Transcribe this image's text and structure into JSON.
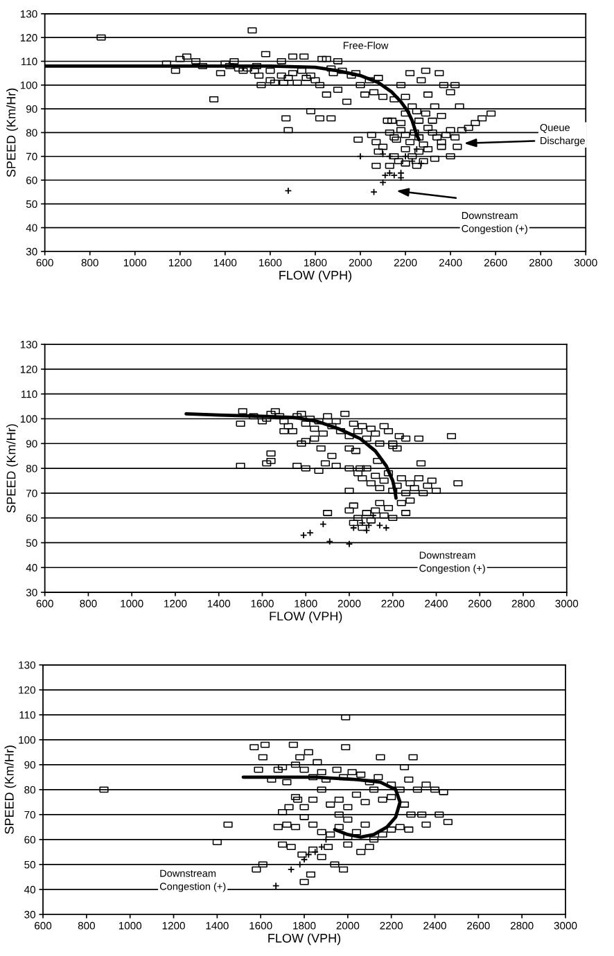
{
  "chart_data": [
    {
      "type": "scatter",
      "xlabel": "FLOW (VPH)",
      "ylabel": "SPEED (Km/Hr)",
      "xlim": [
        600,
        3000
      ],
      "ylim": [
        30,
        130
      ],
      "xticks": [
        600,
        800,
        1000,
        1200,
        1400,
        1600,
        1800,
        2000,
        2200,
        2400,
        2600,
        2800,
        3000
      ],
      "yticks": [
        30,
        40,
        50,
        60,
        70,
        80,
        90,
        100,
        110,
        120,
        130
      ],
      "grid": "y",
      "annotations": [
        "Free-Flow",
        "Queue\nDischarge",
        "Downstream\nCongestion (+)"
      ],
      "series": [
        {
          "marker": "square",
          "color": "#000000",
          "x": [
            850,
            1520,
            1180,
            1350,
            1140,
            1200,
            1230,
            1270,
            1300,
            1380,
            1400,
            1420,
            1440,
            1460,
            1480,
            1500,
            1530,
            1550,
            1560,
            1600,
            1620,
            1650,
            1680,
            1700,
            1720,
            1740,
            1760,
            1780,
            1800,
            1820,
            1830,
            1850,
            1870,
            1880,
            1900,
            1920,
            1940,
            1960,
            1980,
            2000,
            2020,
            2040,
            2060,
            2080,
            2100,
            1700,
            1580,
            1650,
            1750,
            1850,
            1900,
            1780,
            1820,
            1870,
            1670,
            1680,
            1660,
            1540,
            1600,
            2150,
            2180,
            2200,
            2230,
            2250,
            2270,
            2300,
            2330,
            2350,
            2370,
            2400,
            2420,
            2440,
            2290,
            2220,
            2200,
            2260,
            2290,
            2320,
            2360,
            2510,
            2540,
            2580,
            2480,
            2450,
            2050,
            2070,
            2080,
            2100,
            2130,
            2150,
            2160,
            2180,
            2200,
            2220,
            2240,
            2260,
            2280,
            2300,
            2320,
            2340,
            2360,
            2380,
            2400,
            2420,
            2360,
            2300,
            2260,
            2230,
            2200,
            2170,
            2150,
            2280,
            2330,
            2400,
            2130,
            2250,
            2200,
            1990,
            2070,
            2120,
            2140,
            2180,
            2430
          ],
          "values": [
            120,
            123,
            106,
            94,
            109,
            111,
            112,
            110,
            108,
            105,
            109,
            108,
            110,
            107,
            106,
            107,
            106,
            104,
            100,
            102,
            101,
            104,
            103,
            105,
            101,
            106,
            103,
            104,
            102,
            100,
            111,
            96,
            107,
            105,
            98,
            106,
            93,
            104,
            105,
            100,
            96,
            102,
            97,
            103,
            95,
            112,
            113,
            110,
            112,
            111,
            110,
            89,
            86,
            86,
            86,
            81,
            101,
            108,
            106,
            94,
            100,
            95,
            91,
            89,
            102,
            96,
            91,
            105,
            100,
            97,
            100,
            91,
            106,
            105,
            88,
            85,
            88,
            85,
            87,
            84,
            86,
            88,
            82,
            81,
            79,
            76,
            72,
            74,
            80,
            78,
            77,
            81,
            79,
            76,
            80,
            78,
            75,
            82,
            80,
            78,
            76,
            79,
            81,
            78,
            74,
            73,
            72,
            70,
            67,
            68,
            70,
            68,
            69,
            70,
            66,
            66,
            73,
            77,
            66,
            85,
            85,
            84,
            74
          ]
        },
        {
          "marker": "cross",
          "color": "#000000",
          "x": [
            1680,
            2060,
            2100,
            2110,
            2130,
            2150,
            2180,
            2130,
            2200,
            2250,
            2000,
            2100,
            2230,
            2270,
            2180
          ],
          "values": [
            55.5,
            55,
            59,
            62,
            63,
            62,
            63,
            70,
            70,
            73,
            70,
            71,
            68,
            67,
            61
          ]
        },
        {
          "type": "line",
          "marker": "none",
          "color": "#000000",
          "x": [
            600,
            1000,
            1400,
            1600,
            1800,
            1900,
            2000,
            2080,
            2140,
            2180,
            2210,
            2230,
            2240,
            2250,
            2260
          ],
          "values": [
            108,
            108,
            108,
            108,
            107.5,
            106,
            104,
            101,
            97,
            93,
            89,
            85,
            82,
            79,
            77
          ]
        }
      ]
    },
    {
      "type": "scatter",
      "xlabel": "FLOW (VPH)",
      "ylabel": "SPEED (Km/Hr)",
      "xlim": [
        600,
        3000
      ],
      "ylim": [
        30,
        130
      ],
      "xticks": [
        600,
        800,
        1000,
        1200,
        1400,
        1600,
        1800,
        2000,
        2200,
        2400,
        2600,
        2800,
        3000
      ],
      "yticks": [
        30,
        40,
        50,
        60,
        70,
        80,
        90,
        100,
        110,
        120,
        130
      ],
      "grid": "y",
      "annotations": [
        "Downstream\nCongestion (+)"
      ],
      "series": [
        {
          "marker": "square",
          "color": "#000000",
          "x": [
            1500,
            1510,
            1560,
            1600,
            1620,
            1640,
            1660,
            1680,
            1700,
            1720,
            1740,
            1760,
            1780,
            1800,
            1820,
            1840,
            1860,
            1880,
            1900,
            1920,
            1940,
            1960,
            1980,
            2000,
            2020,
            2040,
            2060,
            2080,
            2100,
            2120,
            2140,
            2160,
            2180,
            2200,
            2230,
            2260,
            2320,
            2470,
            1700,
            1840,
            1800,
            1780,
            1870,
            1920,
            1890,
            1640,
            1640,
            1620,
            1500,
            1760,
            1800,
            1860,
            1940,
            2000,
            2030,
            2200,
            2220,
            2040,
            2060,
            2080,
            2100,
            2120,
            2140,
            2160,
            2180,
            2200,
            2220,
            2240,
            2260,
            2280,
            2300,
            2320,
            2340,
            2360,
            2380,
            2400,
            2330,
            2500,
            2000,
            2020,
            2000,
            2040,
            2060,
            2080,
            2100,
            2120,
            2140,
            2160,
            2180,
            2200,
            2240,
            2260,
            2280,
            1900,
            2020,
            2050,
            2130,
            2000
          ],
          "values": [
            98,
            103,
            101,
            99,
            100,
            102,
            103,
            101,
            99,
            97,
            95,
            101,
            102,
            98,
            100,
            96,
            99,
            94,
            101,
            97,
            99,
            95,
            102,
            93,
            98,
            95,
            97,
            92,
            96,
            94,
            90,
            97,
            95,
            89,
            93,
            92,
            92,
            93,
            95,
            92,
            91,
            90,
            88,
            85,
            82,
            86,
            83,
            82,
            81,
            81,
            80,
            79,
            81,
            88,
            87,
            90,
            88,
            78,
            76,
            80,
            74,
            77,
            72,
            75,
            78,
            71,
            73,
            76,
            70,
            74,
            72,
            76,
            70,
            73,
            75,
            71,
            82,
            74,
            71,
            65,
            63,
            60,
            56,
            62,
            59,
            63,
            66,
            61,
            64,
            60,
            66,
            62,
            67,
            62,
            58,
            80,
            83,
            80
          ]
        },
        {
          "marker": "cross",
          "color": "#000000",
          "x": [
            1790,
            1820,
            1880,
            1910,
            2000,
            2080,
            2140,
            2170,
            2110,
            2090,
            2060,
            2020
          ],
          "values": [
            53,
            54,
            57.5,
            50.5,
            49.5,
            55,
            57,
            56,
            61,
            57,
            58,
            56
          ]
        },
        {
          "type": "line",
          "marker": "none",
          "color": "#000000",
          "x": [
            1250,
            1400,
            1600,
            1750,
            1850,
            1950,
            2050,
            2120,
            2170,
            2200,
            2210,
            2215
          ],
          "values": [
            102,
            101.5,
            101,
            100.5,
            99,
            96,
            92,
            87,
            81,
            75,
            71,
            68
          ]
        }
      ]
    },
    {
      "type": "scatter",
      "xlabel": "FLOW (VPH)",
      "ylabel": "SPEED (Km/Hr)",
      "xlim": [
        600,
        3000
      ],
      "ylim": [
        30,
        130
      ],
      "xticks": [
        600,
        800,
        1000,
        1200,
        1400,
        1600,
        1800,
        2000,
        2200,
        2400,
        2600,
        2800,
        3000
      ],
      "yticks": [
        30,
        40,
        50,
        60,
        70,
        80,
        90,
        100,
        110,
        120,
        130
      ],
      "grid": "y",
      "annotations": [
        "Downstream\nCongestion (+)"
      ],
      "series": [
        {
          "marker": "square",
          "color": "#000000",
          "x": [
            880,
            1400,
            1450,
            1580,
            1610,
            1570,
            1620,
            1750,
            1990,
            1610,
            1780,
            1860,
            1820,
            1990,
            2150,
            2300,
            2260,
            1590,
            1680,
            1700,
            1760,
            1800,
            1840,
            1880,
            1900,
            1950,
            1980,
            2020,
            2060,
            2100,
            2140,
            2200,
            2240,
            2280,
            2320,
            2360,
            2400,
            2440,
            1650,
            1720,
            1760,
            1770,
            1800,
            1730,
            1700,
            1840,
            1880,
            1920,
            1960,
            2000,
            2040,
            2080,
            2120,
            2160,
            2200,
            2260,
            2290,
            2340,
            2420,
            2460,
            2360,
            2240,
            2280,
            1680,
            1720,
            1760,
            1800,
            1840,
            1880,
            1920,
            1960,
            2000,
            2040,
            2080,
            2120,
            2160,
            2200,
            1700,
            1740,
            1790,
            1840,
            1880,
            1940,
            1980,
            1800,
            1830,
            1910,
            2000,
            2060,
            2100,
            1960,
            2000
          ],
          "values": [
            80,
            59,
            66,
            48,
            50,
            97,
            98,
            98,
            109,
            93,
            93,
            91,
            95,
            97,
            93,
            93,
            89,
            88,
            88,
            89,
            90,
            88,
            85,
            87,
            84,
            88,
            85,
            87,
            86,
            83,
            85,
            82,
            80,
            84,
            80,
            82,
            80,
            79,
            84,
            83,
            77,
            76,
            73,
            73,
            71,
            76,
            80,
            74,
            76,
            73,
            78,
            75,
            80,
            76,
            77,
            74,
            70,
            70,
            70,
            67,
            66,
            65,
            64,
            65,
            66,
            65,
            69,
            66,
            63,
            62,
            65,
            68,
            63,
            66,
            60,
            62,
            64,
            58,
            57,
            54,
            56,
            53,
            50,
            48,
            43,
            46,
            57,
            58,
            55,
            57,
            70,
            61
          ]
        },
        {
          "marker": "cross",
          "color": "#000000",
          "x": [
            1670,
            1740,
            1780,
            1800,
            1820,
            1850,
            1880,
            1900
          ],
          "values": [
            41.5,
            48,
            50,
            52,
            54,
            55,
            57,
            60
          ]
        },
        {
          "type": "line",
          "marker": "none",
          "color": "#000000",
          "x": [
            1520,
            1700,
            1850,
            1950,
            2050,
            2150,
            2220,
            2240,
            2220,
            2180,
            2120,
            2060,
            2000,
            1940
          ],
          "values": [
            85,
            85,
            85,
            84.5,
            84,
            83,
            80,
            75,
            69,
            65,
            62,
            61,
            62,
            64
          ]
        }
      ]
    }
  ]
}
